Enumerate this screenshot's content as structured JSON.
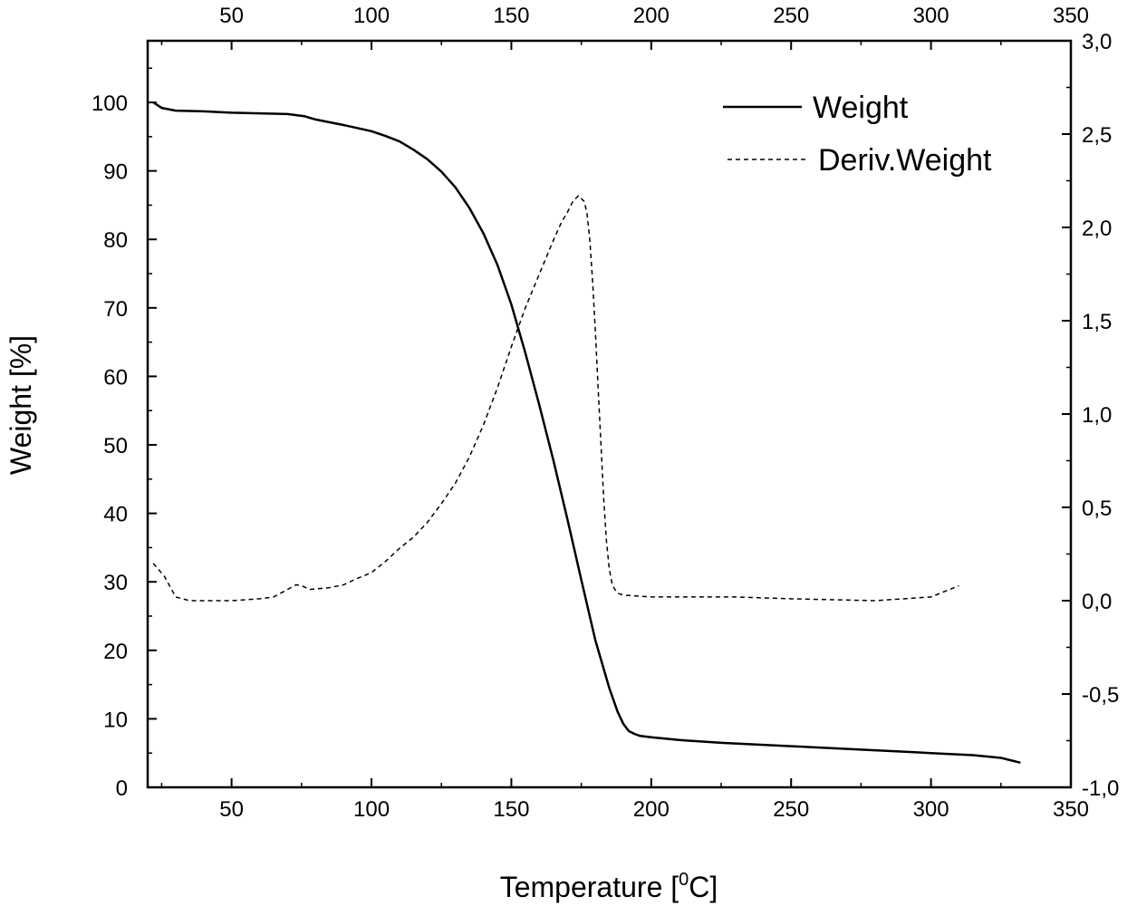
{
  "chart_data": {
    "type": "line",
    "xlabel": "Temperature [",
    "xlabel_sup": "0",
    "xlabel_suffix": "C]",
    "ylabel": "Weight [%]",
    "xlim": [
      20,
      350
    ],
    "ylim_left": [
      0,
      109
    ],
    "ylim_right": [
      -1.0,
      3.0
    ],
    "x_ticks": [
      50,
      100,
      150,
      200,
      250,
      300,
      350
    ],
    "x_tick_labels": [
      "50",
      "100",
      "150",
      "200",
      "250",
      "300",
      "350"
    ],
    "x_top_ticks": [
      50,
      100,
      150,
      200,
      250,
      300,
      350
    ],
    "x_top_tick_labels": [
      "50",
      "100",
      "150",
      "200",
      "250",
      "300",
      "350"
    ],
    "y_left_ticks": [
      0,
      10,
      20,
      30,
      40,
      50,
      60,
      70,
      80,
      90,
      100
    ],
    "y_left_tick_labels": [
      "0",
      "10",
      "20",
      "30",
      "40",
      "50",
      "60",
      "70",
      "80",
      "90",
      "100"
    ],
    "y_right_ticks": [
      -1.0,
      -0.5,
      0.0,
      0.5,
      1.0,
      1.5,
      2.0,
      2.5,
      3.0
    ],
    "y_right_tick_labels": [
      "-1,0",
      "-0,5",
      "0,0",
      "0,5",
      "1,0",
      "1,5",
      "2,0",
      "2,5",
      "3,0"
    ],
    "grid": false,
    "legend_position": "top-right",
    "series": [
      {
        "name": "Weight",
        "axis": "left",
        "style": "solid",
        "color": "#000000",
        "x": [
          22,
          25,
          30,
          40,
          50,
          60,
          70,
          76,
          80,
          90,
          100,
          105,
          110,
          115,
          120,
          125,
          130,
          135,
          140,
          145,
          150,
          155,
          160,
          165,
          170,
          175,
          180,
          185,
          188,
          190,
          192,
          194,
          196,
          200,
          210,
          225,
          250,
          275,
          300,
          315,
          325,
          332
        ],
        "y": [
          100,
          99.2,
          98.8,
          98.7,
          98.5,
          98.4,
          98.3,
          98.0,
          97.5,
          96.7,
          95.8,
          95.1,
          94.3,
          93.1,
          91.7,
          89.9,
          87.6,
          84.6,
          80.9,
          76.3,
          70.5,
          63.4,
          55.8,
          47.8,
          39.2,
          30.3,
          21.5,
          14.5,
          11.0,
          9.3,
          8.2,
          7.8,
          7.5,
          7.3,
          6.9,
          6.5,
          6.0,
          5.5,
          5.0,
          4.7,
          4.3,
          3.6
        ]
      },
      {
        "name": "Deriv.Weight",
        "axis": "right",
        "style": "dashed",
        "color": "#000000",
        "x": [
          22,
          26,
          30,
          35,
          40,
          50,
          60,
          65,
          70,
          73,
          75,
          78,
          85,
          90,
          95,
          100,
          105,
          110,
          115,
          120,
          125,
          130,
          135,
          140,
          145,
          150,
          155,
          160,
          165,
          168,
          170,
          172,
          174,
          176,
          177,
          178,
          179,
          180,
          181,
          182,
          183,
          184,
          185,
          186,
          187,
          188,
          190,
          200,
          230,
          250,
          280,
          300,
          305,
          310
        ],
        "y": [
          0.2,
          0.13,
          0.02,
          0.0,
          0.0,
          0.0,
          0.01,
          0.02,
          0.06,
          0.085,
          0.08,
          0.06,
          0.07,
          0.085,
          0.12,
          0.15,
          0.21,
          0.28,
          0.34,
          0.42,
          0.52,
          0.63,
          0.77,
          0.94,
          1.14,
          1.36,
          1.57,
          1.75,
          1.93,
          2.03,
          2.08,
          2.14,
          2.17,
          2.14,
          2.08,
          1.94,
          1.72,
          1.45,
          1.15,
          0.85,
          0.55,
          0.32,
          0.17,
          0.09,
          0.06,
          0.04,
          0.03,
          0.02,
          0.02,
          0.01,
          0.0,
          0.02,
          0.05,
          0.08
        ]
      }
    ]
  }
}
